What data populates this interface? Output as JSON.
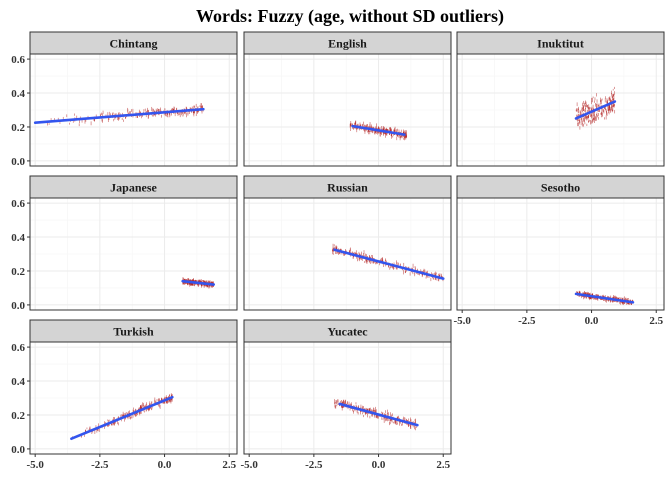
{
  "chart_data": {
    "type": "scatter",
    "title": "Words: Fuzzy (age, without SD outliers)",
    "xlabel": "",
    "ylabel": "",
    "xlim": [
      -5.2,
      2.8
    ],
    "ylim": [
      -0.03,
      0.63
    ],
    "x_ticks": [
      -5.0,
      -2.5,
      0.0,
      2.5
    ],
    "x_tick_labels": [
      "-5.0",
      "-2.5",
      "0.0",
      "2.5"
    ],
    "y_ticks": [
      0.0,
      0.2,
      0.4,
      0.6
    ],
    "y_tick_labels": [
      "0.0",
      "0.2",
      "0.4",
      "0.6"
    ],
    "grid": true,
    "colors": {
      "points": "#b22222",
      "line": "#3355ee",
      "strip": "#d4d4d4",
      "grid": "#ebebeb"
    },
    "panels": [
      {
        "name": "Chintang",
        "fit": {
          "x": [
            -5.0,
            1.5
          ],
          "y": [
            0.225,
            0.305
          ]
        },
        "cloud": {
          "x_range": [
            -4.8,
            1.5
          ],
          "spread": 0.04,
          "density": "increasing"
        }
      },
      {
        "name": "English",
        "fit": {
          "x": [
            -1.0,
            1.0
          ],
          "y": [
            0.205,
            0.155
          ]
        },
        "cloud": {
          "x_range": [
            -1.1,
            1.1
          ],
          "spread": 0.035,
          "density": "uniform"
        }
      },
      {
        "name": "Inuktitut",
        "fit": {
          "x": [
            -0.6,
            0.9
          ],
          "y": [
            0.25,
            0.35
          ]
        },
        "cloud": {
          "x_range": [
            -0.6,
            0.9
          ],
          "spread": 0.1,
          "density": "uniform"
        }
      },
      {
        "name": "Japanese",
        "fit": {
          "x": [
            0.7,
            1.9
          ],
          "y": [
            0.14,
            0.12
          ]
        },
        "cloud": {
          "x_range": [
            0.7,
            1.9
          ],
          "spread": 0.02,
          "density": "uniform"
        }
      },
      {
        "name": "Russian",
        "fit": {
          "x": [
            -1.7,
            2.5
          ],
          "y": [
            0.325,
            0.155
          ]
        },
        "cloud": {
          "x_range": [
            -1.8,
            2.5
          ],
          "spread": 0.035,
          "density": "uniform"
        }
      },
      {
        "name": "Sesotho",
        "fit": {
          "x": [
            -0.6,
            1.6
          ],
          "y": [
            0.065,
            0.015
          ]
        },
        "cloud": {
          "x_range": [
            -0.6,
            1.6
          ],
          "spread": 0.02,
          "density": "uniform"
        }
      },
      {
        "name": "Turkish",
        "fit": {
          "x": [
            -3.6,
            0.3
          ],
          "y": [
            0.06,
            0.305
          ]
        },
        "cloud": {
          "x_range": [
            -3.6,
            0.3
          ],
          "spread": 0.035,
          "density": "increasing"
        }
      },
      {
        "name": "Yucatec",
        "fit": {
          "x": [
            -1.5,
            1.5
          ],
          "y": [
            0.265,
            0.14
          ]
        },
        "cloud": {
          "x_range": [
            -1.7,
            1.5
          ],
          "spread": 0.04,
          "density": "uniform"
        }
      }
    ]
  }
}
